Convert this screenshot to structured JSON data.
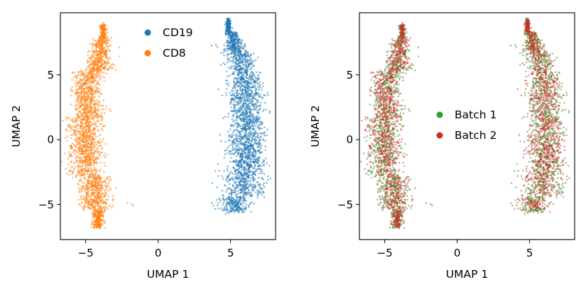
{
  "chart_data": [
    {
      "type": "scatter",
      "title": "",
      "xlabel": "UMAP 1",
      "ylabel": "UMAP 2",
      "xlim": [
        -6.8,
        8.0
      ],
      "ylim": [
        -7.8,
        9.5
      ],
      "xticks": [
        -5,
        0,
        5
      ],
      "yticks": [
        -5,
        0,
        5
      ],
      "xtick_labels": [
        "−5",
        "0",
        "5"
      ],
      "ytick_labels": [
        "−5",
        "0",
        "5"
      ],
      "grid": false,
      "legend_position": "top-center",
      "series": [
        {
          "name": "CD19",
          "color": "#1f77b4",
          "draw_order": 1,
          "description_points": [
            [
              4.7,
              9.0
            ],
            [
              4.8,
              8.0
            ],
            [
              5.0,
              7.0
            ],
            [
              5.4,
              6.0
            ],
            [
              5.8,
              5.0
            ],
            [
              6.2,
              4.0
            ],
            [
              6.4,
              3.0
            ],
            [
              6.5,
              2.0
            ],
            [
              6.5,
              1.0
            ],
            [
              6.4,
              0.0
            ],
            [
              6.3,
              -1.0
            ],
            [
              6.2,
              -2.0
            ],
            [
              6.2,
              -3.0
            ],
            [
              6.0,
              -4.0
            ],
            [
              5.5,
              -5.0
            ],
            [
              5.0,
              -5.6
            ],
            [
              4.0,
              -5.3
            ],
            [
              3.6,
              7.0
            ],
            [
              7.2,
              -3.8
            ]
          ]
        },
        {
          "name": "CD8",
          "color": "#ff7f0e",
          "draw_order": 2,
          "description_points": [
            [
              -3.8,
              8.5
            ],
            [
              -4.0,
              7.5
            ],
            [
              -4.3,
              6.5
            ],
            [
              -4.6,
              5.5
            ],
            [
              -4.9,
              4.5
            ],
            [
              -5.1,
              3.5
            ],
            [
              -5.2,
              2.5
            ],
            [
              -5.2,
              1.5
            ],
            [
              -5.3,
              0.5
            ],
            [
              -5.4,
              -0.5
            ],
            [
              -5.4,
              -1.5
            ],
            [
              -5.3,
              -2.5
            ],
            [
              -5.0,
              -3.5
            ],
            [
              -4.7,
              -4.5
            ],
            [
              -4.3,
              -5.5
            ],
            [
              -4.1,
              -6.5
            ],
            [
              -4.2,
              -6.8
            ],
            [
              -1.8,
              -5.2
            ],
            [
              -5.9,
              -2.0
            ]
          ]
        }
      ]
    },
    {
      "type": "scatter",
      "title": "",
      "xlabel": "UMAP 1",
      "ylabel": "UMAP 2",
      "xlim": [
        -6.8,
        8.0
      ],
      "ylim": [
        -7.8,
        9.5
      ],
      "xticks": [
        -5,
        0,
        5
      ],
      "yticks": [
        -5,
        0,
        5
      ],
      "xtick_labels": [
        "−5",
        "0",
        "5"
      ],
      "ytick_labels": [
        "−5",
        "0",
        "5"
      ],
      "grid": false,
      "legend_position": "center",
      "series": [
        {
          "name": "Batch 1",
          "color": "#2ca02c",
          "draw_order": 1
        },
        {
          "name": "Batch 2",
          "color": "#d62728",
          "draw_order": 2
        }
      ]
    }
  ]
}
